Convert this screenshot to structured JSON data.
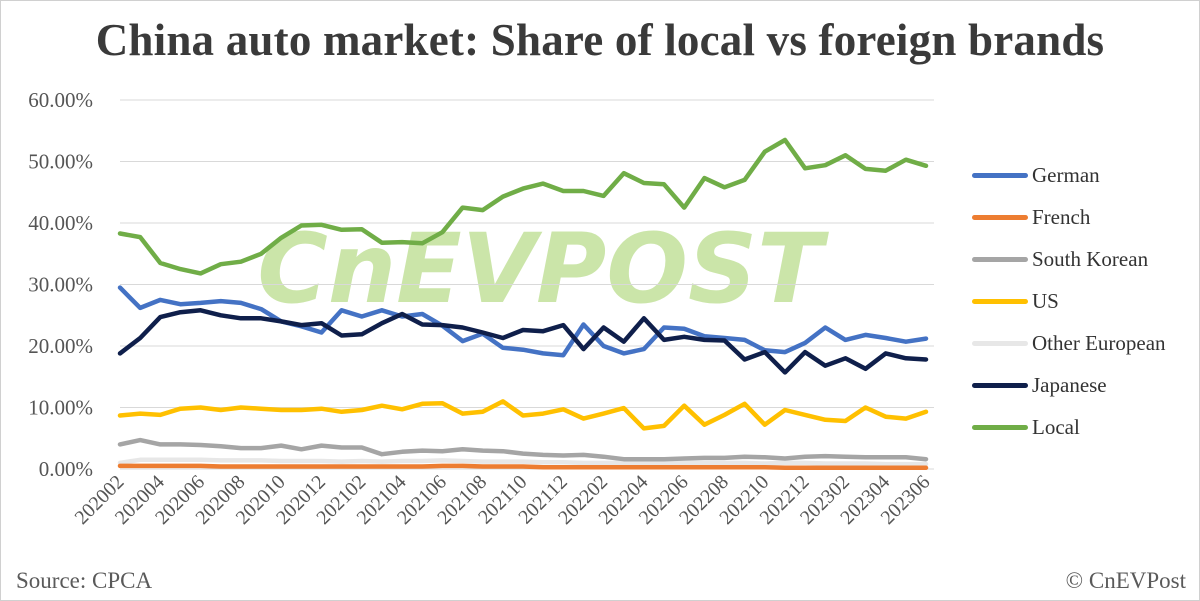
{
  "chart_data": {
    "type": "line",
    "title": "China auto market: Share of local vs foreign brands",
    "source": "Source: CPCA",
    "credit": "© CnEVPost",
    "watermark": "CnEVPOST",
    "ylim": [
      0,
      0.6
    ],
    "y_ticks": [
      "0.00%",
      "10.00%",
      "20.00%",
      "30.00%",
      "40.00%",
      "50.00%",
      "60.00%"
    ],
    "x": [
      "202002",
      "202003",
      "202004",
      "202005",
      "202006",
      "202007",
      "202008",
      "202009",
      "202010",
      "202011",
      "202012",
      "202101",
      "202102",
      "202103",
      "202104",
      "202105",
      "202106",
      "202107",
      "202108",
      "202109",
      "202110",
      "202111",
      "202112",
      "202201",
      "202202",
      "202203",
      "202204",
      "202205",
      "202206",
      "202207",
      "202208",
      "202209",
      "202210",
      "202211",
      "202212",
      "202301",
      "202302",
      "202303",
      "202304",
      "202305",
      "202306"
    ],
    "x_tick_labels": [
      "202002",
      "202004",
      "202006",
      "202008",
      "202010",
      "202012",
      "202102",
      "202104",
      "202106",
      "202108",
      "202110",
      "202112",
      "202202",
      "202204",
      "202206",
      "202208",
      "202210",
      "202212",
      "202302",
      "202304",
      "202306"
    ],
    "grid": "horizontal",
    "legend_position": "right",
    "series": [
      {
        "name": "German",
        "color": "#4472c4",
        "values": [
          0.295,
          0.262,
          0.275,
          0.268,
          0.27,
          0.273,
          0.27,
          0.26,
          0.24,
          0.232,
          0.222,
          0.258,
          0.248,
          0.258,
          0.248,
          0.252,
          0.233,
          0.208,
          0.22,
          0.197,
          0.194,
          0.188,
          0.185,
          0.235,
          0.2,
          0.188,
          0.195,
          0.23,
          0.228,
          0.216,
          0.213,
          0.21,
          0.193,
          0.19,
          0.205,
          0.23,
          0.21,
          0.218,
          0.213,
          0.207,
          0.212
        ]
      },
      {
        "name": "French",
        "color": "#ed7d31",
        "values": [
          0.005,
          0.005,
          0.005,
          0.005,
          0.005,
          0.004,
          0.004,
          0.004,
          0.004,
          0.004,
          0.004,
          0.004,
          0.004,
          0.004,
          0.004,
          0.004,
          0.005,
          0.005,
          0.004,
          0.004,
          0.004,
          0.003,
          0.003,
          0.003,
          0.003,
          0.003,
          0.003,
          0.003,
          0.003,
          0.003,
          0.003,
          0.003,
          0.003,
          0.002,
          0.002,
          0.002,
          0.002,
          0.002,
          0.002,
          0.002,
          0.002
        ]
      },
      {
        "name": "South Korean",
        "color": "#a5a5a5",
        "values": [
          0.04,
          0.047,
          0.04,
          0.04,
          0.039,
          0.037,
          0.034,
          0.034,
          0.038,
          0.032,
          0.038,
          0.035,
          0.035,
          0.024,
          0.028,
          0.03,
          0.029,
          0.032,
          0.03,
          0.029,
          0.025,
          0.023,
          0.022,
          0.023,
          0.02,
          0.016,
          0.016,
          0.016,
          0.017,
          0.018,
          0.018,
          0.02,
          0.019,
          0.017,
          0.02,
          0.021,
          0.02,
          0.019,
          0.019,
          0.019,
          0.016
        ]
      },
      {
        "name": "US",
        "color": "#ffc000",
        "values": [
          0.087,
          0.09,
          0.088,
          0.098,
          0.1,
          0.096,
          0.1,
          0.098,
          0.096,
          0.096,
          0.098,
          0.093,
          0.096,
          0.103,
          0.097,
          0.106,
          0.107,
          0.09,
          0.093,
          0.11,
          0.087,
          0.09,
          0.097,
          0.082,
          0.09,
          0.099,
          0.066,
          0.07,
          0.103,
          0.072,
          0.088,
          0.106,
          0.072,
          0.096,
          0.088,
          0.08,
          0.078,
          0.1,
          0.085,
          0.082,
          0.093
        ]
      },
      {
        "name": "Other European",
        "color": "#e7e7e7",
        "values": [
          0.01,
          0.015,
          0.015,
          0.015,
          0.015,
          0.014,
          0.014,
          0.014,
          0.013,
          0.013,
          0.013,
          0.012,
          0.013,
          0.012,
          0.013,
          0.013,
          0.014,
          0.013,
          0.012,
          0.012,
          0.012,
          0.011,
          0.011,
          0.01,
          0.01,
          0.01,
          0.009,
          0.01,
          0.01,
          0.01,
          0.01,
          0.01,
          0.009,
          0.01,
          0.01,
          0.009,
          0.009,
          0.009,
          0.008,
          0.008,
          0.008
        ]
      },
      {
        "name": "Japanese",
        "color": "#0f1f4b",
        "values": [
          0.188,
          0.213,
          0.247,
          0.255,
          0.258,
          0.25,
          0.245,
          0.245,
          0.24,
          0.234,
          0.237,
          0.217,
          0.219,
          0.237,
          0.252,
          0.235,
          0.234,
          0.23,
          0.222,
          0.213,
          0.226,
          0.224,
          0.234,
          0.195,
          0.23,
          0.207,
          0.245,
          0.21,
          0.215,
          0.21,
          0.209,
          0.178,
          0.19,
          0.157,
          0.19,
          0.168,
          0.18,
          0.163,
          0.188,
          0.18,
          0.178
        ]
      },
      {
        "name": "Local",
        "color": "#70ad47",
        "values": [
          0.383,
          0.377,
          0.335,
          0.325,
          0.318,
          0.333,
          0.337,
          0.35,
          0.376,
          0.396,
          0.397,
          0.389,
          0.39,
          0.368,
          0.369,
          0.367,
          0.385,
          0.425,
          0.421,
          0.443,
          0.456,
          0.464,
          0.452,
          0.452,
          0.444,
          0.481,
          0.465,
          0.463,
          0.425,
          0.473,
          0.458,
          0.47,
          0.516,
          0.535,
          0.489,
          0.494,
          0.51,
          0.488,
          0.485,
          0.503,
          0.493
        ]
      }
    ]
  }
}
